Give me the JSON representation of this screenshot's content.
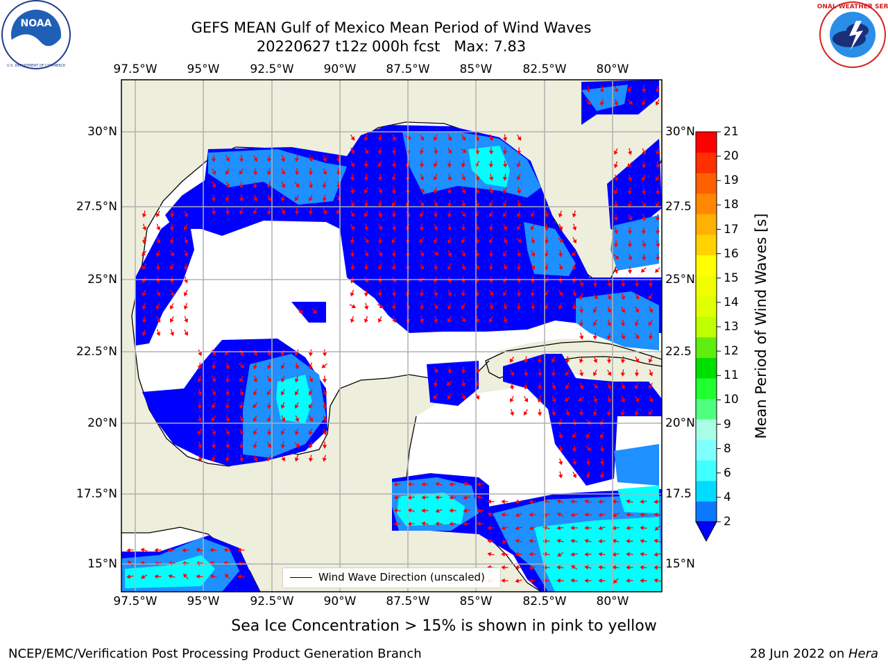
{
  "title": {
    "line1": "GEFS MEAN Gulf of Mexico Mean Period of Wind Waves",
    "line2": "20220627 t12z 000h fcst   Max: 7.83"
  },
  "logos": {
    "noara": {
      "text": "NOAA",
      "ring": "NATIONAL OCEANIC AND ATMOSPHERIC ADMINISTRATION · U.S. DEPARTMENT OF COMMERCE"
    },
    "nws": {
      "ring": "NATIONAL WEATHER SERVICE"
    }
  },
  "map": {
    "lon_ticks": [
      "97.5°W",
      "95°W",
      "92.5°W",
      "90°W",
      "87.5°W",
      "85°W",
      "82.5°W",
      "80°W"
    ],
    "lat_ticks_left": [
      "30°N",
      "27.5°N",
      "25°N",
      "22.5°N",
      "20°N",
      "17.5°N",
      "15°N"
    ],
    "lat_ticks_right": [
      "30°N",
      "27.5",
      "25°N",
      "22.5",
      "20°N",
      "17.5",
      "15°N"
    ],
    "legend_label": "Wind Wave Direction (unscaled)",
    "colors": {
      "land": "#eeeedc",
      "ocean": "#ffffff",
      "level_2_4": "#0000ff",
      "level_4_6": "#1e90ff",
      "level_6_8": "#00ffff",
      "arrow": "#ff0000"
    }
  },
  "colorbar": {
    "label": "Mean Period of Wind Waves [s]",
    "ticks": [
      "21",
      "20",
      "19",
      "18",
      "17",
      "16",
      "15",
      "14",
      "13",
      "12",
      "11",
      "10",
      "9",
      "8",
      "6",
      "4",
      "2"
    ],
    "colors_bottom_to_top": [
      "#0a78ff",
      "#00dcff",
      "#40ffff",
      "#80ffff",
      "#a8ffe6",
      "#50ff80",
      "#20ff30",
      "#00e000",
      "#60ee10",
      "#c0ff00",
      "#e0ff00",
      "#f0ff00",
      "#ffff00",
      "#ffd200",
      "#ffb000",
      "#ff8800",
      "#ff6000",
      "#ff3000",
      "#ff0000"
    ]
  },
  "caption": "Sea Ice Concentration > 15% is shown in pink to yellow",
  "footer": {
    "left": "NCEP/EMC/Verification Post Processing Product Generation Branch",
    "right_prefix": "28 Jun 2022 on ",
    "right_machine": "Hera"
  }
}
